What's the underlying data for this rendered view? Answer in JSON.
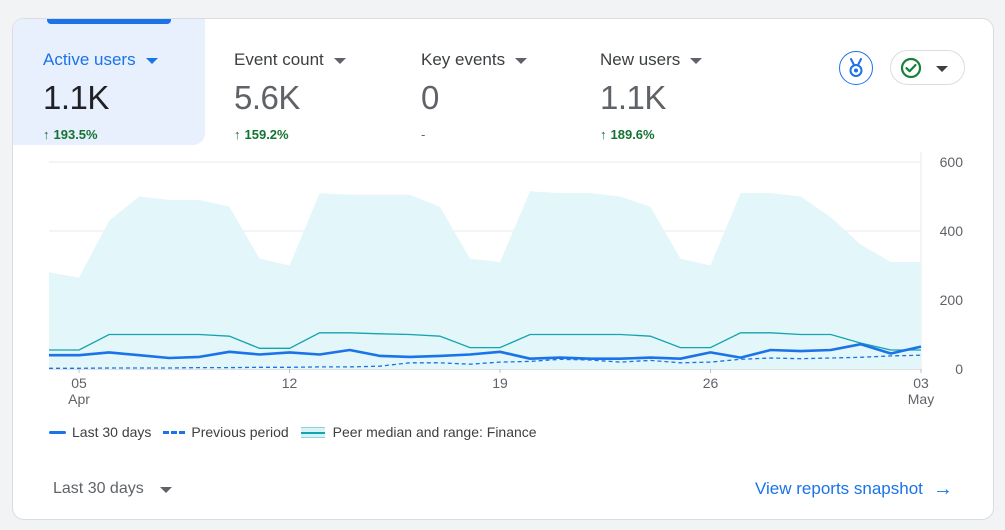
{
  "metrics": [
    {
      "label": "Active users",
      "value": "1.1K",
      "arrow": "↑",
      "change": "193.5%",
      "active": true
    },
    {
      "label": "Event count",
      "value": "5.6K",
      "arrow": "↑",
      "change": "159.2%",
      "active": false
    },
    {
      "label": "Key events",
      "value": "0",
      "arrow": "",
      "change": "-",
      "active": false
    },
    {
      "label": "New users",
      "value": "1.1K",
      "arrow": "↑",
      "change": "189.6%",
      "active": false
    }
  ],
  "icons": {
    "insights": "medal-insights-icon",
    "status": "check-circle-icon",
    "dropdown": "chevron-down-icon",
    "view_arrow": "arrow-right-icon"
  },
  "colors": {
    "primary": "#1a73e8",
    "peer_band": "#e3f6f9",
    "peer_line": "#12a4af",
    "positive": "#137333",
    "status_green": "#188038"
  },
  "legend": {
    "last30": "Last 30 days",
    "previous": "Previous period",
    "peer": "Peer median and range: Finance"
  },
  "footer": {
    "date_range": "Last 30 days",
    "view_link": "View reports snapshot",
    "view_arrow": "→"
  },
  "chart_data": {
    "type": "line",
    "ylim": [
      0,
      600
    ],
    "yticks": [
      "600",
      "400",
      "200",
      "0"
    ],
    "ytick_values": [
      600,
      400,
      200,
      0
    ],
    "xtick_labels": [
      {
        "index": 1,
        "day": "05",
        "month": "Apr"
      },
      {
        "index": 8,
        "day": "12",
        "month": ""
      },
      {
        "index": 15,
        "day": "19",
        "month": ""
      },
      {
        "index": 22,
        "day": "26",
        "month": ""
      },
      {
        "index": 29,
        "day": "03",
        "month": "May"
      }
    ],
    "x": [
      "Apr 4",
      "Apr 5",
      "Apr 6",
      "Apr 7",
      "Apr 8",
      "Apr 9",
      "Apr 10",
      "Apr 11",
      "Apr 12",
      "Apr 13",
      "Apr 14",
      "Apr 15",
      "Apr 16",
      "Apr 17",
      "Apr 18",
      "Apr 19",
      "Apr 20",
      "Apr 21",
      "Apr 22",
      "Apr 23",
      "Apr 24",
      "Apr 25",
      "Apr 26",
      "Apr 27",
      "Apr 28",
      "Apr 29",
      "Apr 30",
      "May 1",
      "May 2",
      "May 3"
    ],
    "series": [
      {
        "name": "Last 30 days",
        "style": "solid",
        "values": [
          40,
          40,
          48,
          40,
          32,
          35,
          50,
          42,
          48,
          42,
          55,
          38,
          35,
          38,
          42,
          50,
          30,
          33,
          30,
          30,
          33,
          30,
          48,
          33,
          55,
          52,
          55,
          72,
          45,
          65
        ]
      },
      {
        "name": "Previous period",
        "style": "dashed",
        "values": [
          2,
          2,
          3,
          3,
          3,
          4,
          4,
          5,
          5,
          6,
          6,
          8,
          18,
          18,
          14,
          20,
          22,
          28,
          26,
          20,
          25,
          18,
          20,
          28,
          32,
          30,
          32,
          34,
          38,
          40
        ]
      },
      {
        "name": "Peer median and range: Finance",
        "style": "band",
        "median": [
          55,
          55,
          100,
          100,
          100,
          100,
          95,
          60,
          60,
          105,
          105,
          102,
          100,
          95,
          62,
          62,
          100,
          100,
          100,
          100,
          95,
          62,
          62,
          105,
          105,
          100,
          100,
          75,
          55,
          55
        ],
        "lower": [
          0,
          0,
          0,
          0,
          0,
          0,
          0,
          0,
          0,
          0,
          0,
          0,
          0,
          0,
          0,
          0,
          0,
          0,
          0,
          0,
          0,
          0,
          0,
          0,
          0,
          0,
          0,
          0,
          0,
          0
        ],
        "upper": [
          280,
          265,
          430,
          500,
          490,
          490,
          470,
          320,
          300,
          510,
          505,
          505,
          505,
          470,
          320,
          310,
          515,
          510,
          510,
          500,
          470,
          320,
          300,
          510,
          510,
          500,
          440,
          360,
          310,
          310
        ]
      }
    ],
    "grid": true
  }
}
